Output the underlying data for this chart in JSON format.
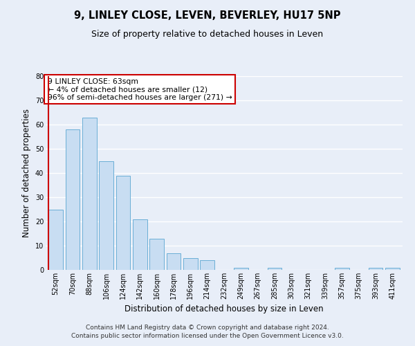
{
  "title": "9, LINLEY CLOSE, LEVEN, BEVERLEY, HU17 5NP",
  "subtitle": "Size of property relative to detached houses in Leven",
  "xlabel": "Distribution of detached houses by size in Leven",
  "ylabel": "Number of detached properties",
  "categories": [
    "52sqm",
    "70sqm",
    "88sqm",
    "106sqm",
    "124sqm",
    "142sqm",
    "160sqm",
    "178sqm",
    "196sqm",
    "214sqm",
    "232sqm",
    "249sqm",
    "267sqm",
    "285sqm",
    "303sqm",
    "321sqm",
    "339sqm",
    "357sqm",
    "375sqm",
    "393sqm",
    "411sqm"
  ],
  "values": [
    25,
    58,
    63,
    45,
    39,
    21,
    13,
    7,
    5,
    4,
    0,
    1,
    0,
    1,
    0,
    0,
    0,
    1,
    0,
    1,
    1
  ],
  "bar_color": "#c8ddf2",
  "bar_edge_color": "#6aaed6",
  "marker_color": "#cc0000",
  "ylim": [
    0,
    80
  ],
  "yticks": [
    0,
    10,
    20,
    30,
    40,
    50,
    60,
    70,
    80
  ],
  "annotation_title": "9 LINLEY CLOSE: 63sqm",
  "annotation_line1": "← 4% of detached houses are smaller (12)",
  "annotation_line2": "96% of semi-detached houses are larger (271) →",
  "annotation_box_color": "#ffffff",
  "annotation_box_edge": "#cc0000",
  "footer_line1": "Contains HM Land Registry data © Crown copyright and database right 2024.",
  "footer_line2": "Contains public sector information licensed under the Open Government Licence v3.0.",
  "bg_color": "#e8eef8",
  "plot_bg_color": "#e8eef8",
  "grid_color": "#ffffff",
  "title_fontsize": 10.5,
  "subtitle_fontsize": 9,
  "label_fontsize": 8.5,
  "tick_fontsize": 7,
  "annotation_fontsize": 7.8,
  "footer_fontsize": 6.5
}
